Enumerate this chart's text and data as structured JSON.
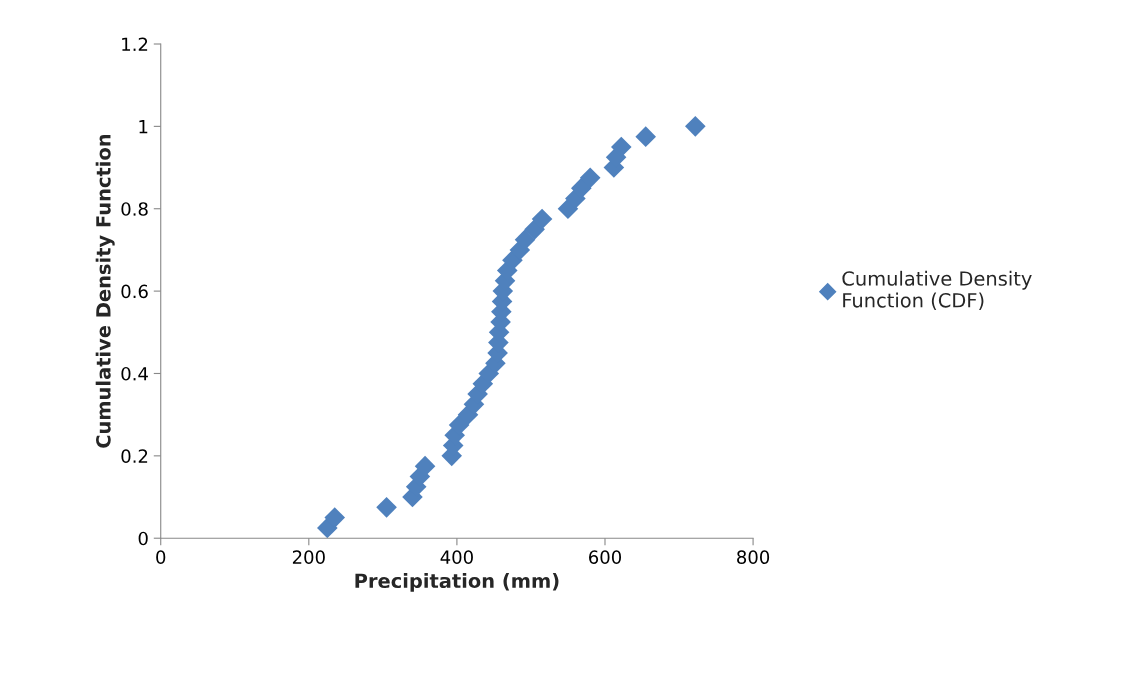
{
  "chart_data": {
    "type": "scatter",
    "xlabel": "Precipitation (mm)",
    "ylabel": "Cumulative Density Function",
    "xlim": [
      0,
      800
    ],
    "xticks": [
      0,
      200,
      400,
      600,
      800
    ],
    "ylim": [
      0,
      1.2
    ],
    "yticks": [
      0,
      0.2,
      0.4,
      0.6,
      0.8,
      1,
      1.2
    ],
    "grid": false,
    "legend": "right",
    "marker": "diamond",
    "series": [
      {
        "name": "Cumulative Density Function (CDF)",
        "color": "#4f81bd",
        "x": [
          225,
          235,
          305,
          340,
          345,
          350,
          357,
          393,
          395,
          397,
          403,
          415,
          423,
          428,
          435,
          443,
          452,
          455,
          456,
          457,
          459,
          460,
          461,
          462,
          465,
          468,
          475,
          485,
          492,
          505,
          515,
          550,
          560,
          568,
          580,
          612,
          615,
          622,
          655,
          722
        ],
        "values": [
          0.025,
          0.05,
          0.075,
          0.1,
          0.125,
          0.15,
          0.175,
          0.2,
          0.225,
          0.25,
          0.275,
          0.3,
          0.325,
          0.35,
          0.375,
          0.4,
          0.425,
          0.45,
          0.475,
          0.5,
          0.525,
          0.55,
          0.575,
          0.6,
          0.625,
          0.65,
          0.675,
          0.7,
          0.725,
          0.75,
          0.775,
          0.8,
          0.825,
          0.85,
          0.875,
          0.9,
          0.925,
          0.95,
          0.975,
          1.0
        ]
      }
    ]
  }
}
